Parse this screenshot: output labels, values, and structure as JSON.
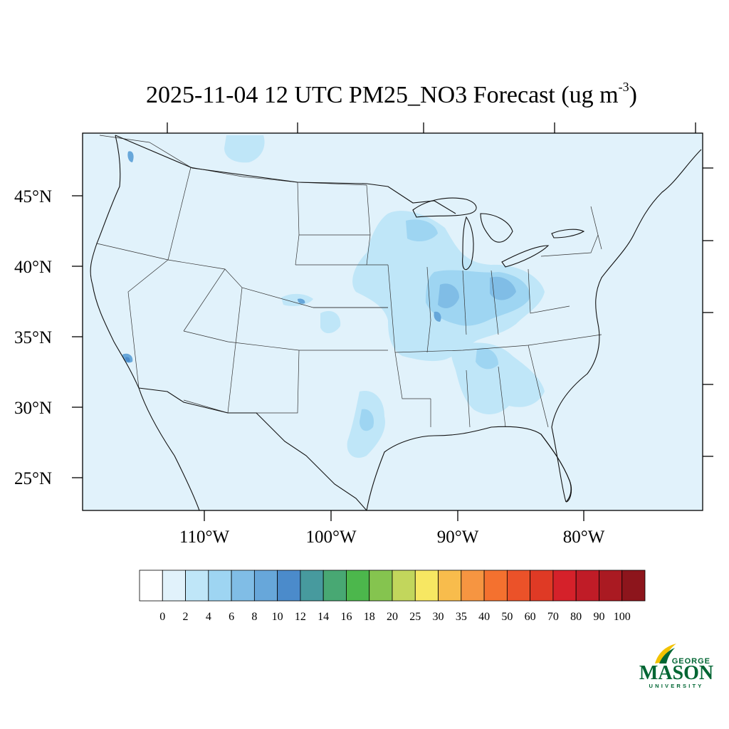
{
  "title": {
    "main": "2025-11-04 12 UTC PM25_NO3 Forecast (ug m",
    "sup": "-3",
    "end": ")"
  },
  "map": {
    "background": "#e1f2fb",
    "lat_labels": [
      "45°N",
      "40°N",
      "35°N",
      "30°N",
      "25°N"
    ],
    "lon_labels": [
      "110°W",
      "100°W",
      "90°W",
      "80°W"
    ]
  },
  "colorbar": {
    "labels": [
      "0",
      "2",
      "4",
      "6",
      "8",
      "10",
      "12",
      "14",
      "16",
      "18",
      "20",
      "25",
      "30",
      "35",
      "40",
      "50",
      "60",
      "70",
      "80",
      "90",
      "100"
    ],
    "colors": [
      "#ffffff",
      "#e1f2fb",
      "#bfe6f8",
      "#9ed5f2",
      "#80bde6",
      "#67a7da",
      "#4b8bcb",
      "#479a9e",
      "#48a873",
      "#4cb74c",
      "#85c44f",
      "#c2d65c",
      "#f7e762",
      "#f8bc4c",
      "#f69541",
      "#f4712f",
      "#eb5229",
      "#df3a25",
      "#d5212a",
      "#c01c27",
      "#aa1a22",
      "#8d151c"
    ]
  },
  "logo": {
    "top": "GEORGE",
    "main": "MASON",
    "bottom": "UNIVERSITY",
    "color": "#006633",
    "accent": "#f2c200"
  }
}
